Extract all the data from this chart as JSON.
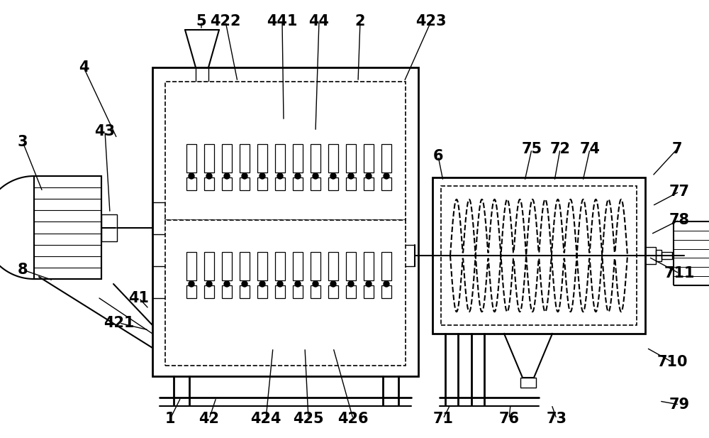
{
  "bg_color": "#ffffff",
  "lc": "#000000",
  "figsize": [
    10.0,
    6.17
  ],
  "dpi": 100
}
